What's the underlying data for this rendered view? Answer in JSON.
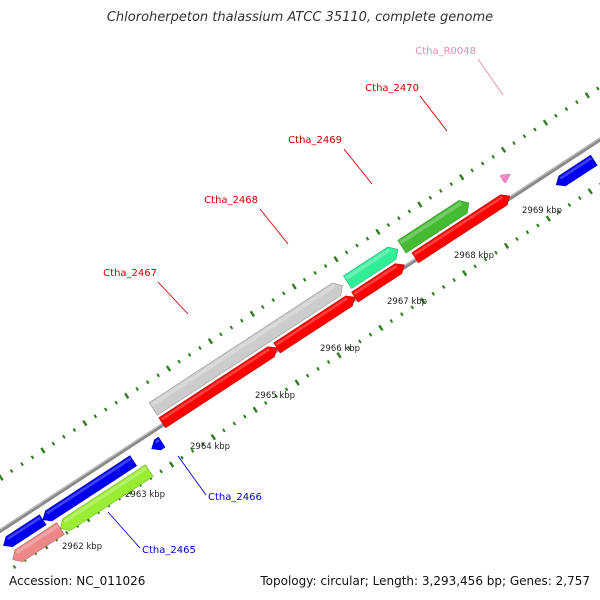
{
  "header": {
    "title": "Chloroherpeton thalassium ATCC 35110, complete genome"
  },
  "footer": {
    "accession": "Accession: NC_011026",
    "summary": "Topology: circular; Length: 3,293,456 bp; Genes: 2,757"
  },
  "colors": {
    "backbone": "#8a8a8a",
    "tick": "#2e7d1e",
    "forward_label": "#cc0000",
    "reverse_label": "#0000cc",
    "rna_label": "#e88ab0"
  },
  "scale": {
    "ticks": [
      {
        "label": "2962 kbp"
      },
      {
        "label": "2963 kbp"
      },
      {
        "label": "2964 kbp"
      },
      {
        "label": "2965 kbp"
      },
      {
        "label": "2966 kbp"
      },
      {
        "label": "2967 kbp"
      },
      {
        "label": "2968 kbp"
      },
      {
        "label": "2969 kbp"
      }
    ]
  },
  "genes": [
    {
      "name": "Ctha_2465",
      "type": "reverse",
      "color": "#0000cc"
    },
    {
      "name": "Ctha_2466",
      "type": "reverse",
      "color": "#0000cc"
    },
    {
      "name": "Ctha_2467",
      "type": "forward",
      "color": "#cc0000"
    },
    {
      "name": "Ctha_2468",
      "type": "forward",
      "color": "#cc0000"
    },
    {
      "name": "Ctha_2469",
      "type": "forward",
      "color": "#cc0000"
    },
    {
      "name": "Ctha_2470",
      "type": "forward",
      "color": "#cc0000"
    },
    {
      "name": "Ctha_R0048",
      "type": "rna",
      "color": "#e88ab0"
    }
  ]
}
